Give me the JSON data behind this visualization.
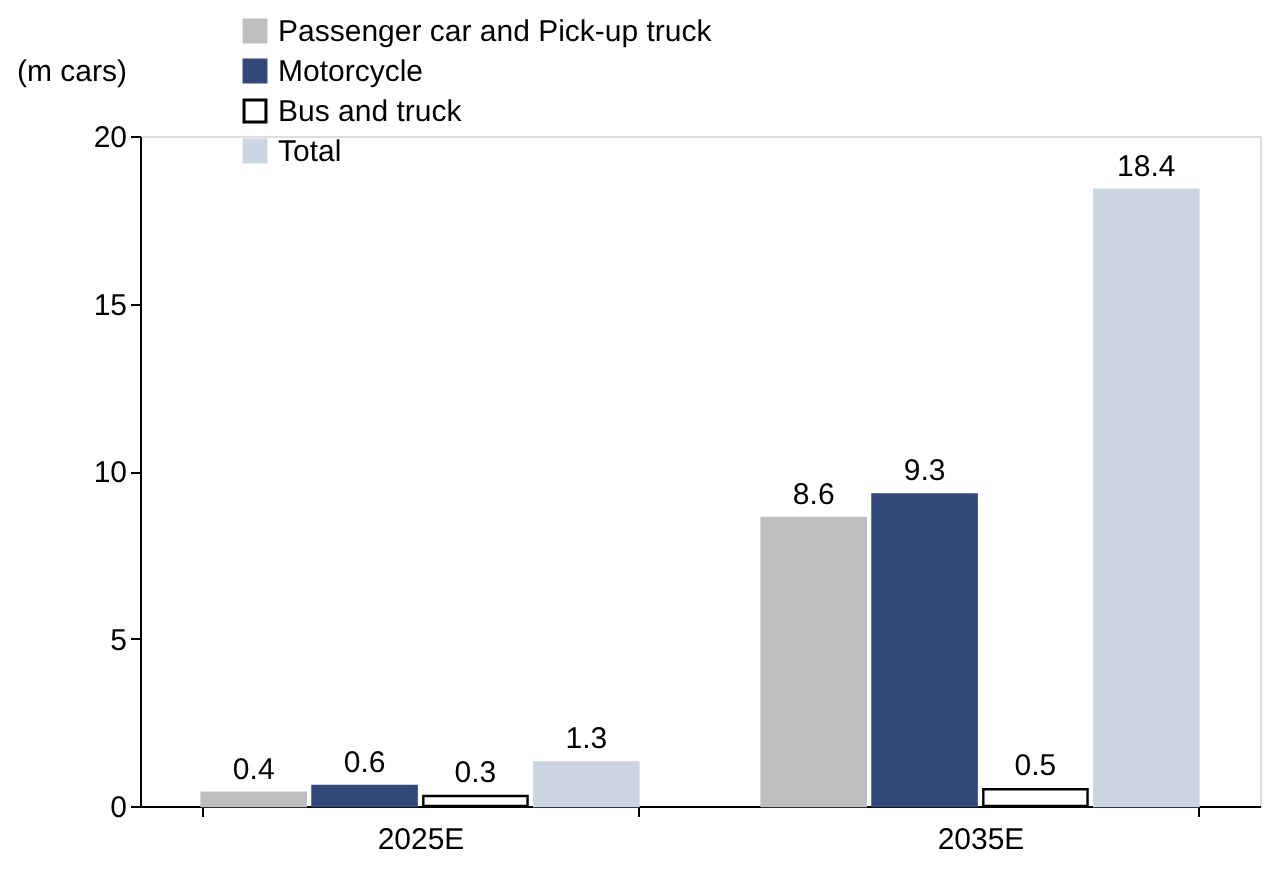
{
  "chart_data": {
    "type": "bar",
    "ylabel": "(m cars)",
    "categories": [
      "2025E",
      "2035E"
    ],
    "series": [
      {
        "name": "Passenger car and Pick-up truck",
        "color": "#bfbfbf",
        "values": [
          0.4,
          8.6
        ]
      },
      {
        "name": "Motorcycle",
        "color": "#34497a",
        "values": [
          0.6,
          9.3
        ]
      },
      {
        "name": "Bus and truck",
        "color": "#ffffff",
        "values": [
          0.3,
          0.5
        ]
      },
      {
        "name": "Total",
        "color": "#cdd5e3",
        "values": [
          1.3,
          18.4
        ]
      }
    ],
    "ylim": [
      0,
      20
    ],
    "yticks": [
      0,
      5,
      10,
      15,
      20
    ],
    "grid": false,
    "legend": "top left",
    "data_labels": true
  }
}
